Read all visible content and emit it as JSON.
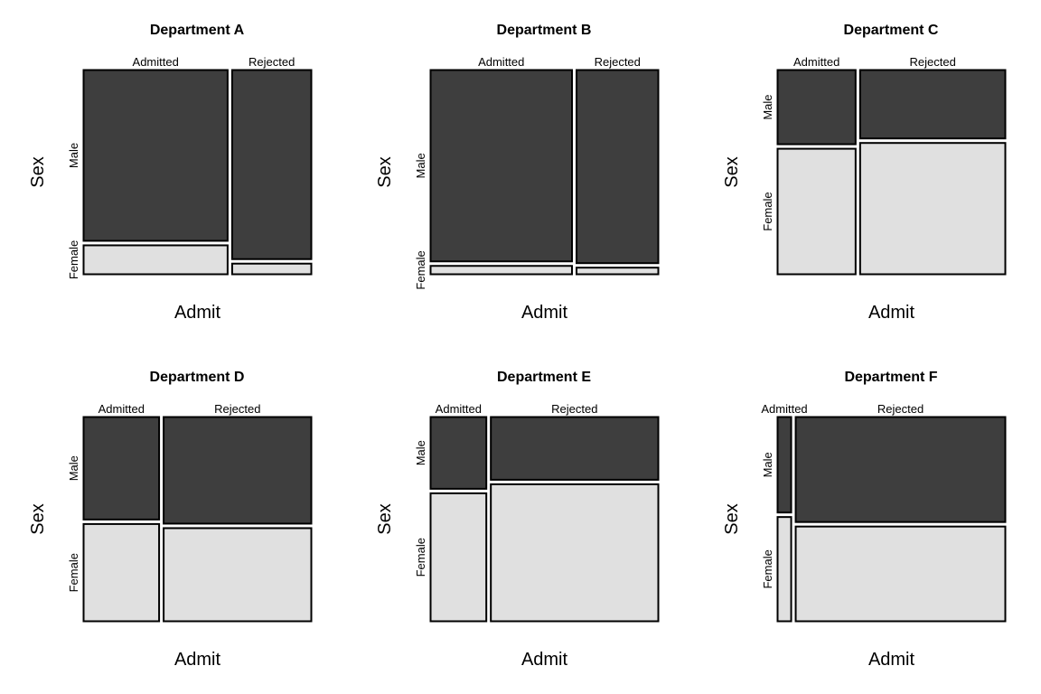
{
  "colors": {
    "Male": "#3e3e3e",
    "Female": "#e0e0e0",
    "stroke": "#000000"
  },
  "chart_data": [
    {
      "type": "mosaic",
      "title": "Department A",
      "xlabel": "Admit",
      "ylabel": "Sex",
      "categories": [
        "Admitted",
        "Rejected"
      ],
      "series": [
        {
          "name": "Male",
          "values": [
            512,
            313
          ]
        },
        {
          "name": "Female",
          "values": [
            89,
            19
          ]
        }
      ]
    },
    {
      "type": "mosaic",
      "title": "Department B",
      "xlabel": "Admit",
      "ylabel": "Sex",
      "categories": [
        "Admitted",
        "Rejected"
      ],
      "series": [
        {
          "name": "Male",
          "values": [
            353,
            207
          ]
        },
        {
          "name": "Female",
          "values": [
            17,
            8
          ]
        }
      ]
    },
    {
      "type": "mosaic",
      "title": "Department C",
      "xlabel": "Admit",
      "ylabel": "Sex",
      "categories": [
        "Admitted",
        "Rejected"
      ],
      "series": [
        {
          "name": "Male",
          "values": [
            120,
            205
          ]
        },
        {
          "name": "Female",
          "values": [
            202,
            391
          ]
        }
      ]
    },
    {
      "type": "mosaic",
      "title": "Department D",
      "xlabel": "Admit",
      "ylabel": "Sex",
      "categories": [
        "Admitted",
        "Rejected"
      ],
      "series": [
        {
          "name": "Male",
          "values": [
            138,
            279
          ]
        },
        {
          "name": "Female",
          "values": [
            131,
            244
          ]
        }
      ]
    },
    {
      "type": "mosaic",
      "title": "Department E",
      "xlabel": "Admit",
      "ylabel": "Sex",
      "categories": [
        "Admitted",
        "Rejected"
      ],
      "series": [
        {
          "name": "Male",
          "values": [
            53,
            138
          ]
        },
        {
          "name": "Female",
          "values": [
            94,
            299
          ]
        }
      ]
    },
    {
      "type": "mosaic",
      "title": "Department F",
      "xlabel": "Admit",
      "ylabel": "Sex",
      "categories": [
        "Admitted",
        "Rejected"
      ],
      "series": [
        {
          "name": "Male",
          "values": [
            22,
            351
          ]
        },
        {
          "name": "Female",
          "values": [
            24,
            317
          ]
        }
      ]
    }
  ]
}
